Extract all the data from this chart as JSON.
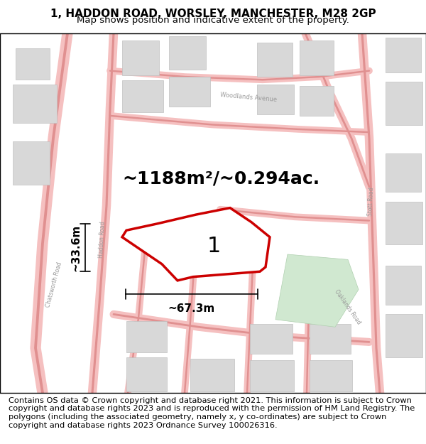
{
  "title_line1": "1, HADDON ROAD, WORSLEY, MANCHESTER, M28 2GP",
  "title_line2": "Map shows position and indicative extent of the property.",
  "area_label": "~1188m²/~0.294ac.",
  "width_label": "~67.3m",
  "height_label": "~33.6m",
  "property_number": "1",
  "footer_text": "Contains OS data © Crown copyright and database right 2021. This information is subject to Crown copyright and database rights 2023 and is reproduced with the permission of HM Land Registry. The polygons (including the associated geometry, namely x, y co-ordinates) are subject to Crown copyright and database rights 2023 Ordnance Survey 100026316.",
  "map_bg_color": "#faf8f8",
  "road_color": "#f5c0c0",
  "building_color": "#d8d8d8",
  "property_fill": "#ffffff",
  "property_outline": "#cc0000",
  "green_fill": "#d0e8d0",
  "title_fontsize": 11,
  "subtitle_fontsize": 9.5,
  "area_fontsize": 18,
  "dim_fontsize": 11,
  "number_fontsize": 22,
  "footer_fontsize": 8.2
}
